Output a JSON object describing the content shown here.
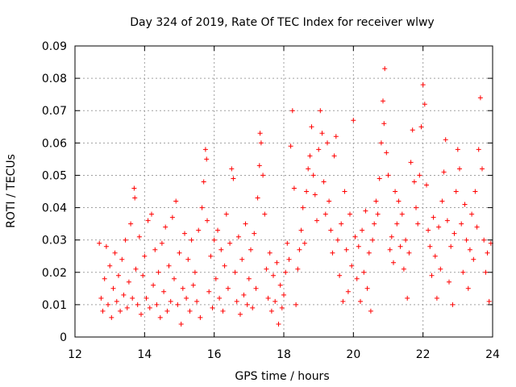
{
  "chart_data": {
    "type": "scatter",
    "title": "Day 324 of 2019, Rate Of TEC Index for receiver wlwy",
    "xlabel": "GPS time / hours",
    "ylabel": "ROTI / TECUs",
    "xlim": [
      12,
      24
    ],
    "ylim": [
      0,
      0.09
    ],
    "xticks": [
      12,
      14,
      16,
      18,
      20,
      22,
      24
    ],
    "xtick_labels": [
      "12",
      "14",
      "16",
      "18",
      "20",
      "22",
      "24"
    ],
    "yticks": [
      0,
      0.01,
      0.02,
      0.03,
      0.04,
      0.05,
      0.06,
      0.07,
      0.08,
      0.09
    ],
    "ytick_labels": [
      "0",
      "0.01",
      "0.02",
      "0.03",
      "0.04",
      "0.05",
      "0.06",
      "0.07",
      "0.08",
      "0.09"
    ],
    "grid": true,
    "marker": "+",
    "series": [
      {
        "name": "ROTI",
        "color": "#ff0000",
        "points": [
          [
            12.7,
            0.029
          ],
          [
            12.75,
            0.012
          ],
          [
            12.8,
            0.008
          ],
          [
            12.85,
            0.018
          ],
          [
            12.9,
            0.028
          ],
          [
            12.95,
            0.01
          ],
          [
            13.0,
            0.022
          ],
          [
            13.05,
            0.006
          ],
          [
            13.1,
            0.015
          ],
          [
            13.15,
            0.026
          ],
          [
            13.2,
            0.011
          ],
          [
            13.25,
            0.019
          ],
          [
            13.3,
            0.008
          ],
          [
            13.35,
            0.024
          ],
          [
            13.4,
            0.013
          ],
          [
            13.45,
            0.03
          ],
          [
            13.5,
            0.009
          ],
          [
            13.55,
            0.017
          ],
          [
            13.6,
            0.035
          ],
          [
            13.65,
            0.012
          ],
          [
            13.7,
            0.046
          ],
          [
            13.72,
            0.043
          ],
          [
            13.75,
            0.021
          ],
          [
            13.8,
            0.01
          ],
          [
            13.85,
            0.031
          ],
          [
            13.9,
            0.007
          ],
          [
            13.95,
            0.019
          ],
          [
            14.0,
            0.025
          ],
          [
            14.05,
            0.012
          ],
          [
            14.1,
            0.036
          ],
          [
            14.15,
            0.009
          ],
          [
            14.2,
            0.038
          ],
          [
            14.25,
            0.016
          ],
          [
            14.3,
            0.027
          ],
          [
            14.35,
            0.01
          ],
          [
            14.4,
            0.02
          ],
          [
            14.45,
            0.006
          ],
          [
            14.5,
            0.029
          ],
          [
            14.55,
            0.014
          ],
          [
            14.6,
            0.034
          ],
          [
            14.65,
            0.008
          ],
          [
            14.7,
            0.022
          ],
          [
            14.75,
            0.011
          ],
          [
            14.8,
            0.037
          ],
          [
            14.85,
            0.018
          ],
          [
            14.9,
            0.042
          ],
          [
            14.95,
            0.01
          ],
          [
            15.0,
            0.026
          ],
          [
            15.05,
            0.004
          ],
          [
            15.1,
            0.015
          ],
          [
            15.15,
            0.032
          ],
          [
            15.2,
            0.012
          ],
          [
            15.25,
            0.024
          ],
          [
            15.3,
            0.008
          ],
          [
            15.35,
            0.03
          ],
          [
            15.4,
            0.016
          ],
          [
            15.45,
            0.02
          ],
          [
            15.5,
            0.011
          ],
          [
            15.55,
            0.033
          ],
          [
            15.6,
            0.006
          ],
          [
            15.65,
            0.04
          ],
          [
            15.7,
            0.048
          ],
          [
            15.75,
            0.058
          ],
          [
            15.78,
            0.055
          ],
          [
            15.8,
            0.036
          ],
          [
            15.85,
            0.014
          ],
          [
            15.9,
            0.025
          ],
          [
            15.95,
            0.009
          ],
          [
            16.0,
            0.03
          ],
          [
            16.05,
            0.018
          ],
          [
            16.1,
            0.033
          ],
          [
            16.15,
            0.012
          ],
          [
            16.2,
            0.027
          ],
          [
            16.25,
            0.008
          ],
          [
            16.3,
            0.022
          ],
          [
            16.35,
            0.038
          ],
          [
            16.4,
            0.015
          ],
          [
            16.45,
            0.029
          ],
          [
            16.5,
            0.052
          ],
          [
            16.55,
            0.049
          ],
          [
            16.6,
            0.02
          ],
          [
            16.65,
            0.011
          ],
          [
            16.7,
            0.031
          ],
          [
            16.75,
            0.007
          ],
          [
            16.8,
            0.024
          ],
          [
            16.85,
            0.013
          ],
          [
            16.9,
            0.035
          ],
          [
            16.95,
            0.01
          ],
          [
            17.0,
            0.018
          ],
          [
            17.05,
            0.027
          ],
          [
            17.1,
            0.009
          ],
          [
            17.15,
            0.032
          ],
          [
            17.2,
            0.015
          ],
          [
            17.25,
            0.043
          ],
          [
            17.3,
            0.053
          ],
          [
            17.32,
            0.063
          ],
          [
            17.35,
            0.06
          ],
          [
            17.4,
            0.05
          ],
          [
            17.45,
            0.038
          ],
          [
            17.5,
            0.021
          ],
          [
            17.55,
            0.012
          ],
          [
            17.6,
            0.026
          ],
          [
            17.65,
            0.008
          ],
          [
            17.7,
            0.019
          ],
          [
            17.75,
            0.011
          ],
          [
            17.8,
            0.023
          ],
          [
            17.85,
            0.004
          ],
          [
            17.9,
            0.016
          ],
          [
            17.95,
            0.009
          ],
          [
            18.0,
            0.013
          ],
          [
            18.05,
            0.02
          ],
          [
            18.1,
            0.029
          ],
          [
            18.15,
            0.024
          ],
          [
            18.2,
            0.059
          ],
          [
            18.25,
            0.07
          ],
          [
            18.3,
            0.046
          ],
          [
            18.35,
            0.01
          ],
          [
            18.4,
            0.021
          ],
          [
            18.45,
            0.027
          ],
          [
            18.5,
            0.033
          ],
          [
            18.55,
            0.04
          ],
          [
            18.6,
            0.029
          ],
          [
            18.65,
            0.045
          ],
          [
            18.7,
            0.052
          ],
          [
            18.75,
            0.056
          ],
          [
            18.8,
            0.065
          ],
          [
            18.85,
            0.05
          ],
          [
            18.9,
            0.044
          ],
          [
            18.95,
            0.036
          ],
          [
            19.0,
            0.058
          ],
          [
            19.05,
            0.07
          ],
          [
            19.1,
            0.063
          ],
          [
            19.15,
            0.048
          ],
          [
            19.2,
            0.038
          ],
          [
            19.25,
            0.06
          ],
          [
            19.3,
            0.042
          ],
          [
            19.35,
            0.033
          ],
          [
            19.4,
            0.026
          ],
          [
            19.45,
            0.056
          ],
          [
            19.5,
            0.062
          ],
          [
            19.55,
            0.03
          ],
          [
            19.6,
            0.019
          ],
          [
            19.65,
            0.035
          ],
          [
            19.7,
            0.011
          ],
          [
            19.75,
            0.045
          ],
          [
            19.8,
            0.027
          ],
          [
            19.85,
            0.014
          ],
          [
            19.9,
            0.038
          ],
          [
            19.95,
            0.022
          ],
          [
            20.0,
            0.067
          ],
          [
            20.05,
            0.031
          ],
          [
            20.1,
            0.018
          ],
          [
            20.15,
            0.028
          ],
          [
            20.2,
            0.011
          ],
          [
            20.25,
            0.033
          ],
          [
            20.3,
            0.02
          ],
          [
            20.35,
            0.039
          ],
          [
            20.4,
            0.015
          ],
          [
            20.45,
            0.026
          ],
          [
            20.5,
            0.008
          ],
          [
            20.55,
            0.03
          ],
          [
            20.6,
            0.035
          ],
          [
            20.65,
            0.042
          ],
          [
            20.7,
            0.038
          ],
          [
            20.75,
            0.049
          ],
          [
            20.8,
            0.06
          ],
          [
            20.85,
            0.073
          ],
          [
            20.88,
            0.066
          ],
          [
            20.9,
            0.083
          ],
          [
            20.95,
            0.057
          ],
          [
            21.0,
            0.05
          ],
          [
            21.05,
            0.027
          ],
          [
            21.1,
            0.031
          ],
          [
            21.15,
            0.023
          ],
          [
            21.2,
            0.045
          ],
          [
            21.25,
            0.035
          ],
          [
            21.3,
            0.042
          ],
          [
            21.35,
            0.028
          ],
          [
            21.4,
            0.038
          ],
          [
            21.45,
            0.021
          ],
          [
            21.5,
            0.03
          ],
          [
            21.55,
            0.012
          ],
          [
            21.6,
            0.026
          ],
          [
            21.65,
            0.054
          ],
          [
            21.7,
            0.064
          ],
          [
            21.75,
            0.048
          ],
          [
            21.8,
            0.04
          ],
          [
            21.85,
            0.035
          ],
          [
            21.9,
            0.05
          ],
          [
            21.95,
            0.065
          ],
          [
            22.0,
            0.078
          ],
          [
            22.05,
            0.072
          ],
          [
            22.1,
            0.047
          ],
          [
            22.15,
            0.033
          ],
          [
            22.2,
            0.028
          ],
          [
            22.25,
            0.019
          ],
          [
            22.3,
            0.037
          ],
          [
            22.35,
            0.025
          ],
          [
            22.4,
            0.012
          ],
          [
            22.45,
            0.034
          ],
          [
            22.5,
            0.021
          ],
          [
            22.55,
            0.042
          ],
          [
            22.6,
            0.051
          ],
          [
            22.65,
            0.061
          ],
          [
            22.7,
            0.036
          ],
          [
            22.75,
            0.017
          ],
          [
            22.8,
            0.028
          ],
          [
            22.85,
            0.01
          ],
          [
            22.9,
            0.032
          ],
          [
            22.95,
            0.045
          ],
          [
            23.0,
            0.058
          ],
          [
            23.05,
            0.052
          ],
          [
            23.1,
            0.035
          ],
          [
            23.15,
            0.02
          ],
          [
            23.2,
            0.041
          ],
          [
            23.25,
            0.03
          ],
          [
            23.3,
            0.015
          ],
          [
            23.35,
            0.027
          ],
          [
            23.4,
            0.038
          ],
          [
            23.45,
            0.024
          ],
          [
            23.5,
            0.045
          ],
          [
            23.55,
            0.034
          ],
          [
            23.6,
            0.058
          ],
          [
            23.65,
            0.074
          ],
          [
            23.7,
            0.052
          ],
          [
            23.75,
            0.03
          ],
          [
            23.8,
            0.02
          ],
          [
            23.85,
            0.026
          ],
          [
            23.9,
            0.011
          ],
          [
            23.95,
            0.029
          ]
        ]
      }
    ]
  }
}
